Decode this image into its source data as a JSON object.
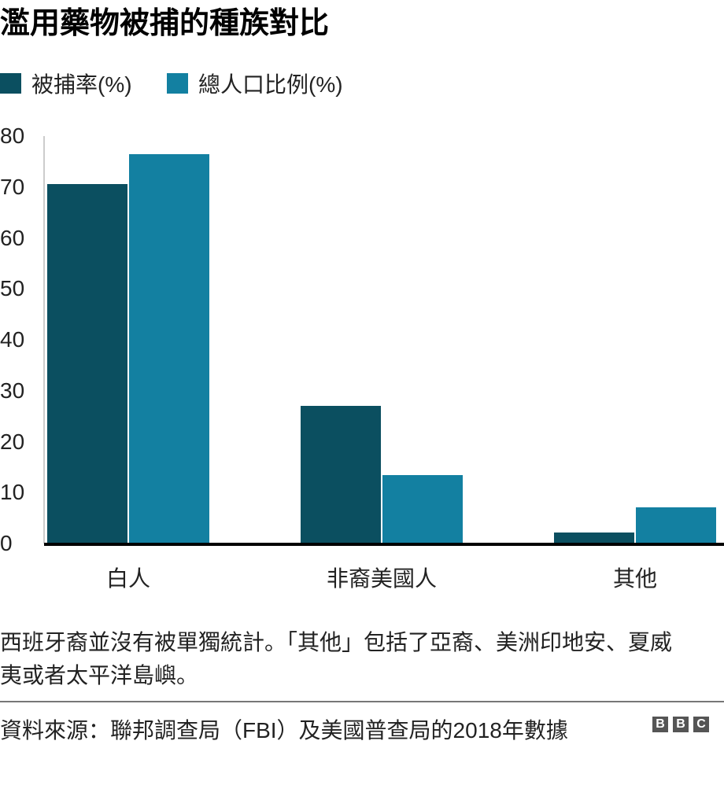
{
  "title": "濫用藥物被捕的種族對比",
  "legend": [
    {
      "label": "被捕率(%)",
      "color": "#0b4f60"
    },
    {
      "label": "總人口比例(%)",
      "color": "#1380a1"
    }
  ],
  "chart_data": {
    "type": "bar",
    "title": "濫用藥物被捕的種族對比",
    "categories": [
      "白人",
      "非裔美國人",
      "其他"
    ],
    "series": [
      {
        "name": "被捕率(%)",
        "color": "#0b4f60",
        "values": [
          70.6,
          27.0,
          2.2
        ]
      },
      {
        "name": "總人口比例(%)",
        "color": "#1380a1",
        "values": [
          76.4,
          13.4,
          7.1
        ]
      }
    ],
    "xlabel": "",
    "ylabel": "",
    "ylim": [
      0,
      80
    ],
    "yticks": [
      0,
      10,
      20,
      30,
      40,
      50,
      60,
      70,
      80
    ],
    "grid": false,
    "legend_position": "top-left"
  },
  "note": "西班牙裔並沒有被單獨統計。「其他」包括了亞裔、美洲印地安、夏威夷或者太平洋島嶼。",
  "source": "資料來源：聯邦調查局（FBI）及美國普查局的2018年數據",
  "logo": {
    "letters": [
      "B",
      "B",
      "C"
    ]
  }
}
